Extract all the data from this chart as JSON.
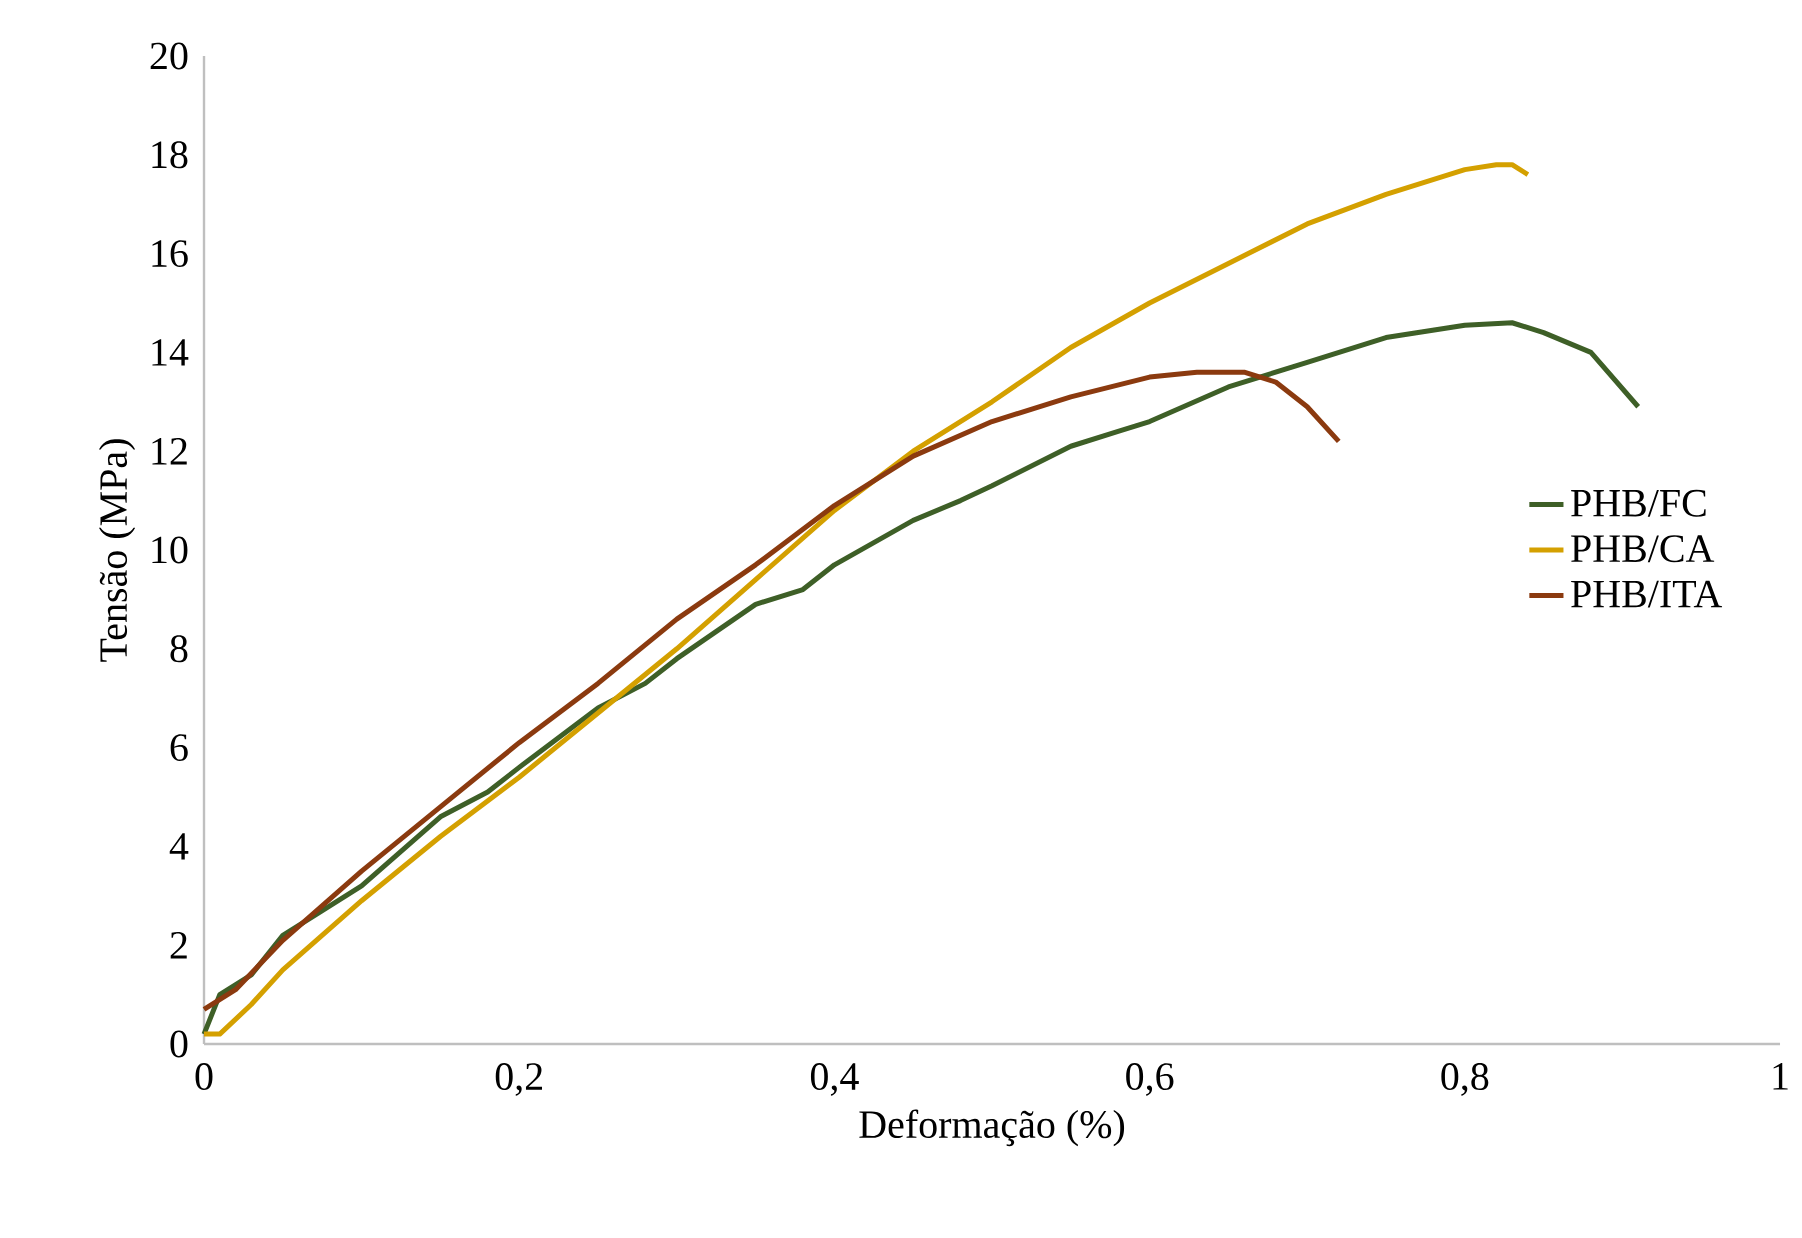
{
  "chart_data": {
    "type": "line",
    "xlabel": "Deformação (%)",
    "ylabel": "Tensão (MPa)",
    "xlim": [
      0,
      1
    ],
    "ylim": [
      0,
      20
    ],
    "xticks": [
      {
        "value": 0,
        "label": "0"
      },
      {
        "value": 0.2,
        "label": "0,2"
      },
      {
        "value": 0.4,
        "label": "0,4"
      },
      {
        "value": 0.6,
        "label": "0,6"
      },
      {
        "value": 0.8,
        "label": "0,8"
      },
      {
        "value": 1,
        "label": "1"
      }
    ],
    "yticks": [
      0,
      2,
      4,
      6,
      8,
      10,
      12,
      14,
      16,
      18,
      20
    ],
    "grid": false,
    "legend": "right",
    "marker": "none",
    "line_style": "solid",
    "series": [
      {
        "name": "PHB/FC",
        "color": "#3e5f27",
        "x": [
          0,
          0.01,
          0.03,
          0.05,
          0.07,
          0.1,
          0.15,
          0.18,
          0.2,
          0.25,
          0.28,
          0.3,
          0.35,
          0.38,
          0.4,
          0.45,
          0.48,
          0.5,
          0.55,
          0.58,
          0.6,
          0.65,
          0.7,
          0.75,
          0.8,
          0.83,
          0.85,
          0.88,
          0.91
        ],
        "values": [
          0.2,
          1.0,
          1.4,
          2.2,
          2.6,
          3.2,
          4.6,
          5.1,
          5.6,
          6.8,
          7.3,
          7.8,
          8.9,
          9.2,
          9.7,
          10.6,
          11.0,
          11.3,
          12.1,
          12.4,
          12.6,
          13.3,
          13.8,
          14.3,
          14.55,
          14.6,
          14.4,
          14.0,
          12.9
        ]
      },
      {
        "name": "PHB/CA",
        "color": "#d4a000",
        "x": [
          0,
          0.01,
          0.03,
          0.05,
          0.1,
          0.15,
          0.2,
          0.25,
          0.3,
          0.35,
          0.4,
          0.45,
          0.5,
          0.55,
          0.6,
          0.65,
          0.7,
          0.75,
          0.8,
          0.82,
          0.83,
          0.84
        ],
        "values": [
          0.2,
          0.2,
          0.8,
          1.5,
          2.9,
          4.2,
          5.4,
          6.7,
          8.0,
          9.4,
          10.8,
          12.0,
          13.0,
          14.1,
          15.0,
          15.8,
          16.6,
          17.2,
          17.7,
          17.8,
          17.8,
          17.6
        ]
      },
      {
        "name": "PHB/ITA",
        "color": "#8b3a0f",
        "x": [
          0,
          0.02,
          0.05,
          0.1,
          0.15,
          0.2,
          0.25,
          0.3,
          0.35,
          0.4,
          0.45,
          0.5,
          0.55,
          0.6,
          0.63,
          0.66,
          0.68,
          0.7,
          0.72
        ],
        "values": [
          0.7,
          1.1,
          2.1,
          3.5,
          4.8,
          6.1,
          7.3,
          8.6,
          9.7,
          10.9,
          11.9,
          12.6,
          13.1,
          13.5,
          13.6,
          13.6,
          13.4,
          12.9,
          12.2
        ]
      }
    ]
  }
}
